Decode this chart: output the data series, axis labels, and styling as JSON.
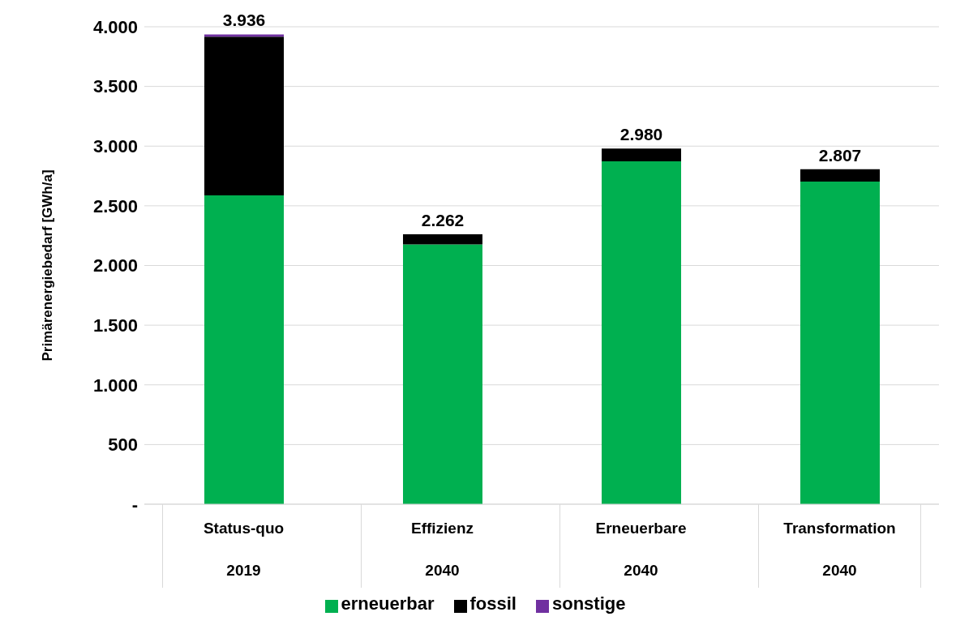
{
  "chart_data": {
    "type": "bar",
    "ylabel": "Primärenergiebedarf [GWh/a]",
    "categories": [
      "Status-quo\n2019",
      "Effizienz\n2040",
      "Erneuerbare\n2040",
      "Transformation\n2040"
    ],
    "series": [
      {
        "name": "erneuerbar",
        "color": "#00b050",
        "values": [
          2587,
          2177,
          2873,
          2703
        ]
      },
      {
        "name": "fossil",
        "color": "#000000",
        "values": [
          1330,
          85,
          107,
          104
        ]
      },
      {
        "name": "sonstige",
        "color": "#7030a0",
        "values": [
          19,
          0,
          0,
          0
        ]
      }
    ],
    "stacked": true,
    "ylim": [
      0,
      4000
    ],
    "yticks": [
      {
        "value": 0,
        "label": "-"
      },
      {
        "value": 500,
        "label": "500"
      },
      {
        "value": 1000,
        "label": "1.000"
      },
      {
        "value": 1500,
        "label": "1.500"
      },
      {
        "value": 2000,
        "label": "2.000"
      },
      {
        "value": 2500,
        "label": "2.500"
      },
      {
        "value": 3000,
        "label": "3.000"
      },
      {
        "value": 3500,
        "label": "3.500"
      },
      {
        "value": 4000,
        "label": "4.000"
      }
    ],
    "totals": [
      "3.936",
      "2.262",
      "2.980",
      "2.807"
    ],
    "grid": "y",
    "legend": "bottom"
  }
}
